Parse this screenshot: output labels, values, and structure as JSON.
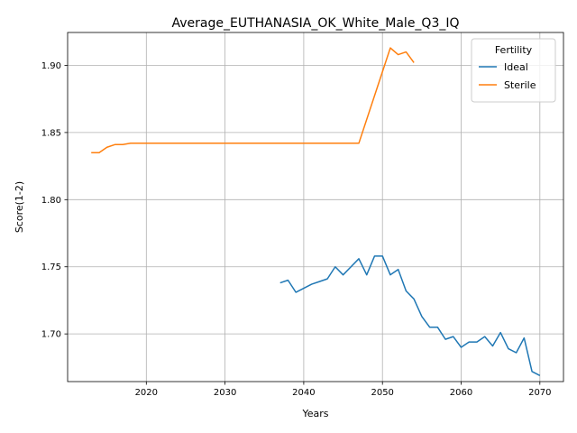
{
  "chart_data": {
    "type": "line",
    "title": "Average_EUTHANASIA_OK_White_Male_Q3_IQ",
    "xlabel": "Years",
    "ylabel": "Score(1-2)",
    "xlim": [
      2010,
      2073
    ],
    "ylim": [
      1.6645,
      1.9245
    ],
    "x_ticks": [
      2020,
      2030,
      2040,
      2050,
      2060,
      2070
    ],
    "y_ticks": [
      1.7,
      1.75,
      1.8,
      1.85,
      1.9
    ],
    "grid": true,
    "legend": {
      "title": "Fertility",
      "placement": "top-right"
    },
    "series": [
      {
        "name": "Ideal",
        "color": "#1f77b4",
        "x": [
          2037,
          2038,
          2039,
          2040,
          2041,
          2042,
          2043,
          2044,
          2045,
          2046,
          2047,
          2048,
          2049,
          2050,
          2051,
          2052,
          2053,
          2054,
          2055,
          2056,
          2057,
          2058,
          2059,
          2060,
          2061,
          2062,
          2063,
          2064,
          2065,
          2066,
          2067,
          2068,
          2069,
          2070
        ],
        "y": [
          1.738,
          1.74,
          1.731,
          1.734,
          1.737,
          1.739,
          1.741,
          1.75,
          1.744,
          1.75,
          1.756,
          1.744,
          1.758,
          1.758,
          1.744,
          1.748,
          1.732,
          1.726,
          1.713,
          1.705,
          1.705,
          1.696,
          1.698,
          1.69,
          1.694,
          1.694,
          1.698,
          1.691,
          1.701,
          1.689,
          1.686,
          1.697,
          1.672,
          1.669
        ]
      },
      {
        "name": "Sterile",
        "color": "#ff7f0e",
        "x": [
          2013,
          2014,
          2015,
          2016,
          2017,
          2018,
          2019,
          2020,
          2025,
          2030,
          2035,
          2040,
          2045,
          2046,
          2047,
          2051,
          2052,
          2053,
          2054
        ],
        "y": [
          1.835,
          1.835,
          1.839,
          1.841,
          1.841,
          1.842,
          1.842,
          1.842,
          1.842,
          1.842,
          1.842,
          1.842,
          1.842,
          1.842,
          1.842,
          1.913,
          1.908,
          1.91,
          1.902
        ]
      }
    ]
  }
}
